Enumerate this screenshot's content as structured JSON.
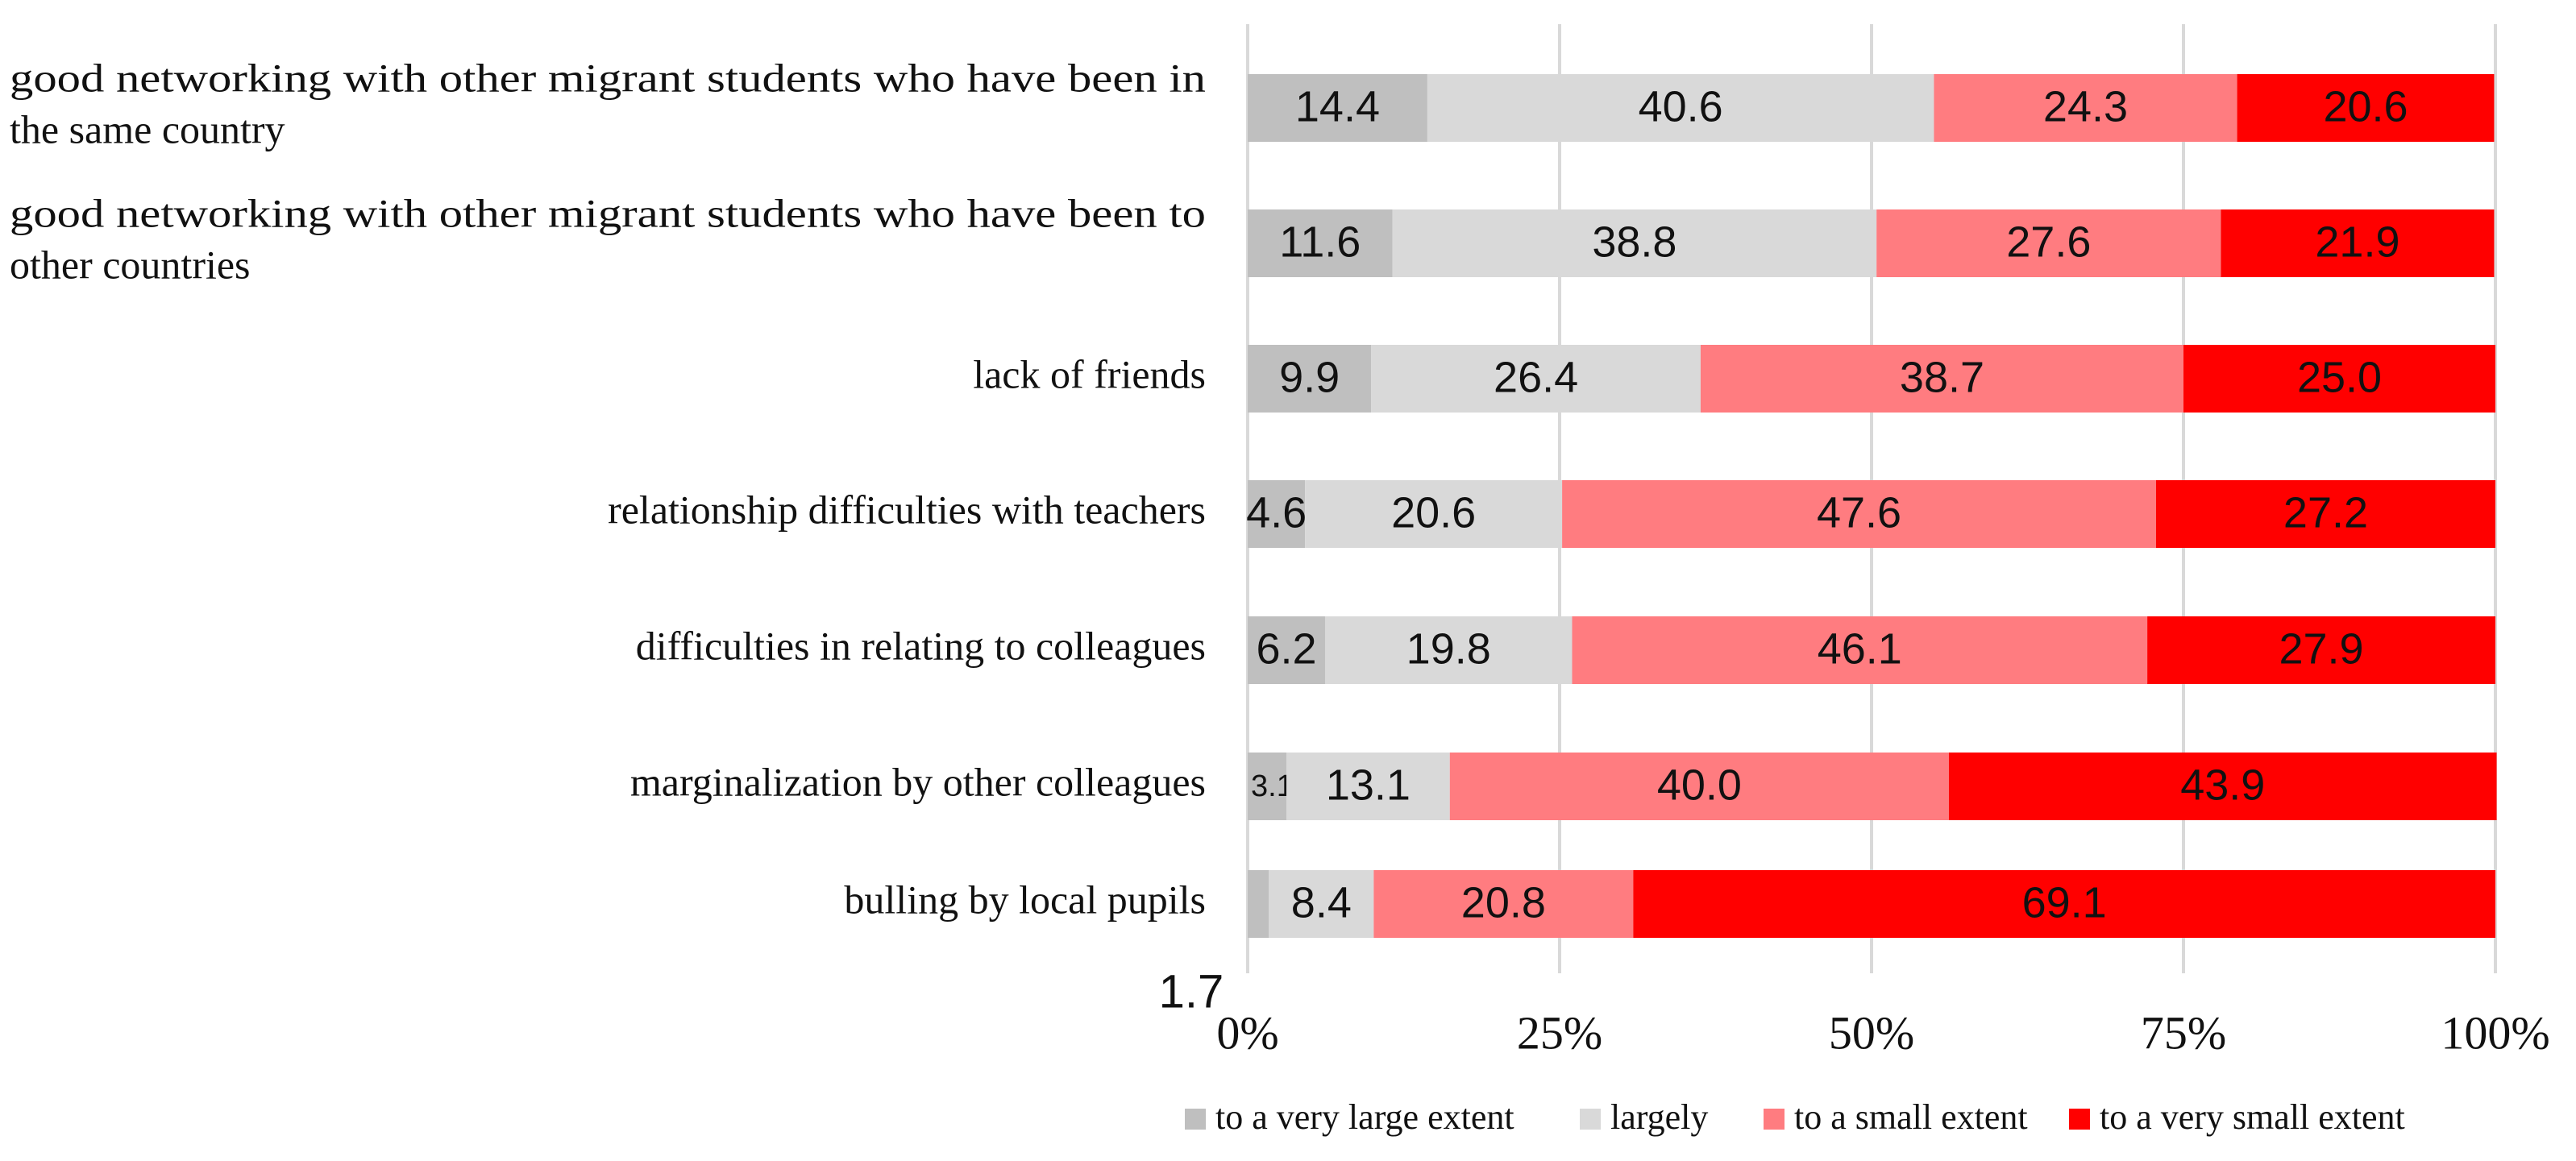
{
  "chart_data": {
    "type": "bar",
    "orientation": "horizontal",
    "stacked": true,
    "normalized": true,
    "title": "",
    "xlabel": "",
    "ylabel": "",
    "xlim": [
      0,
      100
    ],
    "x_ticks": [
      "0%",
      "25%",
      "50%",
      "75%",
      "100%"
    ],
    "grid": true,
    "legend_position": "bottom",
    "categories": [
      "good networking with other migrant students who have been in the same country",
      "good networking with other migrant students who have been to other countries",
      "lack of friends",
      "relationship difficulties with teachers",
      "difficulties in relating to colleagues",
      "marginalization by other colleagues",
      "bulling by local pupils"
    ],
    "category_lines": [
      [
        "good networking with other migrant students who have been in",
        "the same country"
      ],
      [
        "good networking with other migrant students who have been to",
        "other countries"
      ],
      [
        "lack of friends"
      ],
      [
        "relationship difficulties with teachers"
      ],
      [
        "difficulties in relating to colleagues"
      ],
      [
        "marginalization by other colleagues"
      ],
      [
        "bulling by local pupils"
      ]
    ],
    "series": [
      {
        "name": "to a very large extent",
        "color": "#BFBFBF",
        "values": [
          14.4,
          11.6,
          9.9,
          4.6,
          6.2,
          3.1,
          1.7
        ],
        "labels": [
          "14.4",
          "11.6",
          "9.9",
          "4.6",
          "6.2",
          "3.1",
          "1.7"
        ]
      },
      {
        "name": "largely",
        "color": "#D9D9D9",
        "values": [
          40.6,
          38.8,
          26.4,
          20.6,
          19.8,
          13.1,
          8.4
        ],
        "labels": [
          "40.6",
          "38.8",
          "26.4",
          "20.6",
          "19.8",
          "13.1",
          "8.4"
        ]
      },
      {
        "name": "to a small extent",
        "color": "#FF7C80",
        "values": [
          24.3,
          27.6,
          38.7,
          47.6,
          46.1,
          40.0,
          20.8
        ],
        "labels": [
          "24.3",
          "27.6",
          "38.7",
          "47.6",
          "46.1",
          "40.0",
          "20.8"
        ]
      },
      {
        "name": "to a very small extent",
        "color": "#FF0000",
        "values": [
          20.6,
          21.9,
          25.0,
          27.2,
          27.9,
          43.9,
          69.1
        ],
        "labels": [
          "20.6",
          "21.9",
          "25.0",
          "27.2",
          "27.9",
          "43.9",
          "69.1"
        ]
      }
    ]
  }
}
